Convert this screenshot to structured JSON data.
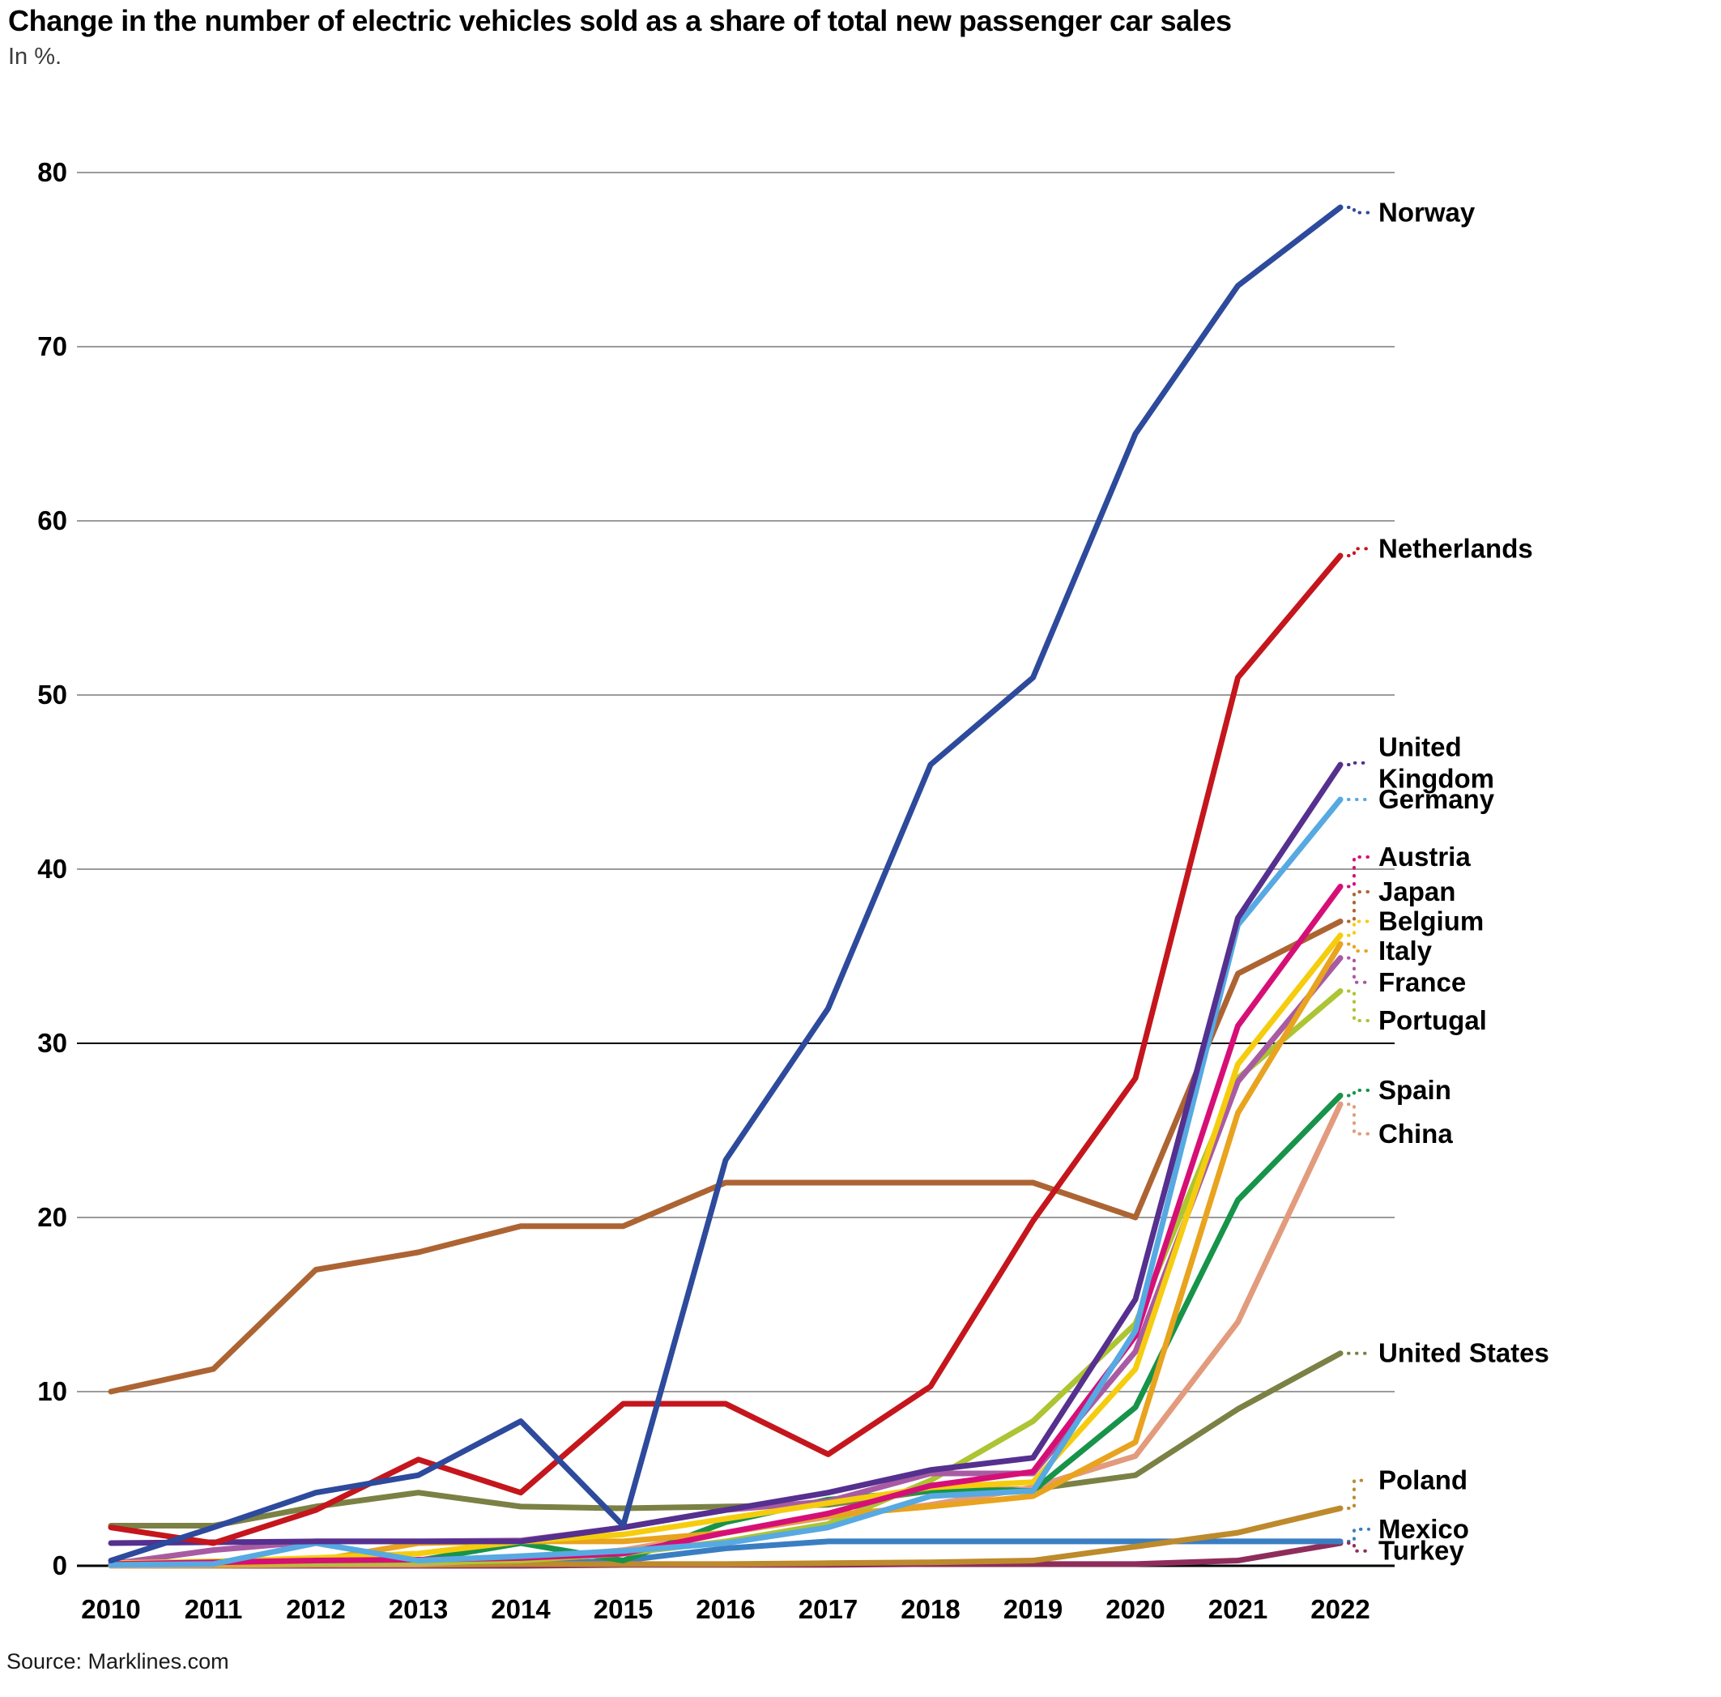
{
  "page": {
    "title": "Change in the number of electric vehicles sold as a share of total new passenger car sales",
    "subtitle": "In %.",
    "source": "Source: Marklines.com"
  },
  "chart_data": {
    "type": "line",
    "title": "Change in the number of electric vehicles sold as a share of total new passenger car sales",
    "subtitle": "In %.",
    "source": "Source: Marklines.com",
    "x": [
      2010,
      2011,
      2012,
      2013,
      2014,
      2015,
      2016,
      2017,
      2018,
      2019,
      2020,
      2021,
      2022
    ],
    "ylim": [
      0,
      80
    ],
    "y_ticks": [
      0,
      10,
      20,
      30,
      40,
      50,
      60,
      70,
      80
    ],
    "grid": "horizontal",
    "legend_position": "right-edge-labels",
    "series": [
      {
        "name": "Norway",
        "label_lines": [
          "Norway"
        ],
        "color": "#2d4a9c",
        "label_v": 77.7,
        "values": [
          0.3,
          2.2,
          4.2,
          5.2,
          8.3,
          2.3,
          23.3,
          32,
          46,
          51,
          65,
          73.5,
          78
        ]
      },
      {
        "name": "Netherlands",
        "label_lines": [
          "Netherlands"
        ],
        "color": "#c4161c",
        "label_v": 58.4,
        "values": [
          2.2,
          1.3,
          3.2,
          6.1,
          4.2,
          9.3,
          9.3,
          6.4,
          10.3,
          19.8,
          28,
          51,
          58
        ]
      },
      {
        "name": "United Kingdom",
        "label_lines": [
          "United",
          "Kingdom"
        ],
        "color": "#55308f",
        "label_v": 46.1,
        "values": [
          1.3,
          1.35,
          1.4,
          1.4,
          1.4,
          2.2,
          3.2,
          4.2,
          5.5,
          6.2,
          15.3,
          37.2,
          46
        ]
      },
      {
        "name": "Germany",
        "label_lines": [
          "Germany"
        ],
        "color": "#57a9e2",
        "label_v": 44.0,
        "values": [
          0.05,
          0.1,
          1.3,
          0.3,
          0.55,
          0.85,
          1.3,
          2.2,
          4.0,
          4.3,
          13.5,
          36.8,
          44
        ]
      },
      {
        "name": "Austria",
        "label_lines": [
          "Austria"
        ],
        "color": "#d60f77",
        "label_v": 40.7,
        "values": [
          0.1,
          0.2,
          0.3,
          0.35,
          0.45,
          0.7,
          1.9,
          3.0,
          4.6,
          5.4,
          13.2,
          31,
          39
        ]
      },
      {
        "name": "Japan",
        "label_lines": [
          "Japan"
        ],
        "color": "#ad6433",
        "label_v": 38.7,
        "values": [
          10,
          11.3,
          17,
          18,
          19.5,
          19.5,
          22,
          22,
          22,
          22,
          20,
          34,
          37
        ]
      },
      {
        "name": "Belgium",
        "label_lines": [
          "Belgium"
        ],
        "color": "#f5cd0e",
        "label_v": 37.0,
        "values": [
          0.15,
          0.25,
          0.45,
          0.7,
          1.4,
          1.8,
          2.7,
          3.6,
          4.5,
          4.8,
          11.3,
          28.8,
          36.2
        ]
      },
      {
        "name": "Italy",
        "label_lines": [
          "Italy"
        ],
        "color": "#e8a31f",
        "label_v": 35.3,
        "values": [
          0.05,
          0.1,
          0.3,
          1.3,
          1.4,
          1.4,
          1.9,
          2.9,
          3.4,
          4.0,
          7.1,
          26,
          35.7
        ]
      },
      {
        "name": "France",
        "label_lines": [
          "France"
        ],
        "color": "#a85ba2",
        "label_v": 33.5,
        "values": [
          0.1,
          0.9,
          1.4,
          1.4,
          1.45,
          2.2,
          3.2,
          3.7,
          5.3,
          5.3,
          12.3,
          27.8,
          34.9
        ]
      },
      {
        "name": "Portugal",
        "label_lines": [
          "Portugal"
        ],
        "color": "#adc433",
        "label_v": 31.3,
        "values": [
          0.05,
          0.1,
          0.15,
          0.2,
          0.3,
          0.7,
          1.4,
          2.4,
          4.9,
          8.3,
          13.9,
          28,
          33
        ]
      },
      {
        "name": "Spain",
        "label_lines": [
          "Spain"
        ],
        "color": "#17934a",
        "label_v": 27.3,
        "values": [
          0.1,
          0.15,
          0.25,
          0.3,
          1.3,
          0.3,
          2.5,
          3.8,
          4.3,
          4.3,
          9.1,
          21,
          27
        ]
      },
      {
        "name": "China",
        "label_lines": [
          "China"
        ],
        "color": "#e29b7c",
        "label_v": 24.8,
        "values": [
          0,
          0.05,
          0.1,
          0.1,
          0.4,
          0.9,
          1.9,
          2.8,
          3.5,
          4.5,
          6.3,
          14,
          26.5
        ]
      },
      {
        "name": "United States",
        "label_lines": [
          "United States"
        ],
        "color": "#7b8144",
        "label_v": 12.2,
        "values": [
          2.3,
          2.3,
          3.4,
          4.2,
          3.4,
          3.3,
          3.4,
          3.5,
          4.3,
          4.4,
          5.2,
          9,
          12.2
        ]
      },
      {
        "name": "Poland",
        "label_lines": [
          "Poland"
        ],
        "color": "#bd8a2c",
        "label_v": 4.9,
        "values": [
          0,
          0,
          0.05,
          0.05,
          0.1,
          0.1,
          0.1,
          0.15,
          0.2,
          0.3,
          1.1,
          1.9,
          3.3
        ]
      },
      {
        "name": "Mexico",
        "label_lines": [
          "Mexico"
        ],
        "color": "#3a7ec2",
        "label_v": 2.1,
        "values": [
          0.05,
          0.05,
          0.1,
          0.1,
          0.1,
          0.3,
          1.0,
          1.4,
          1.4,
          1.4,
          1.4,
          1.4,
          1.4
        ]
      },
      {
        "name": "Turkey",
        "label_lines": [
          "Turkey"
        ],
        "color": "#8e2d5b",
        "label_v": 0.85,
        "values": [
          0,
          0,
          0,
          0,
          0,
          0.05,
          0.05,
          0.05,
          0.1,
          0.1,
          0.1,
          0.3,
          1.3
        ]
      }
    ]
  }
}
